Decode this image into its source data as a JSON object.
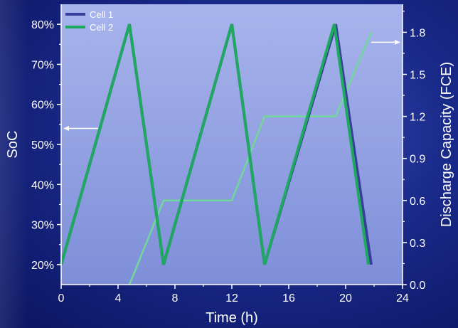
{
  "chart_data": {
    "type": "line",
    "xlabel": "Time (h)",
    "ylabel": "SoC",
    "ylabel_right": "Discharge Capacity (FCE)",
    "xlim": [
      0,
      24
    ],
    "ylim": [
      15,
      85
    ],
    "ylim_right": [
      0,
      2.0
    ],
    "x_ticks": [
      "0",
      "4",
      "8",
      "12",
      "16",
      "20",
      "24"
    ],
    "y_ticks": [
      "20%",
      "30%",
      "40%",
      "50%",
      "60%",
      "70%",
      "80%"
    ],
    "y_right_ticks": [
      "0.0",
      "0.3",
      "0.6",
      "0.9",
      "1.2",
      "1.5",
      "1.8"
    ],
    "legend_position": "top-left",
    "grid": false,
    "series": [
      {
        "name": "Cell 1",
        "axis": "left",
        "color": "#3a3f9a",
        "x": [
          0,
          4.8,
          7.2,
          12.0,
          14.3,
          19.3,
          21.8
        ],
        "y": [
          20,
          80,
          20,
          80,
          20,
          80,
          20
        ]
      },
      {
        "name": "Cell 2",
        "axis": "left",
        "color": "#1fa860",
        "x": [
          0,
          4.8,
          7.2,
          12.0,
          14.3,
          19.2,
          21.6
        ],
        "y": [
          20,
          80,
          20,
          80,
          20,
          80,
          20
        ]
      },
      {
        "name": "",
        "axis": "right",
        "color": "#6fd89a",
        "x": [
          4.8,
          7.2,
          12.0,
          14.3,
          19.3,
          21.8
        ],
        "y": [
          0.0,
          0.6,
          0.6,
          1.2,
          1.2,
          1.8
        ]
      }
    ],
    "annotations": [
      {
        "type": "arrow",
        "points_to": "left-axis",
        "x": 2.6,
        "y": 54
      },
      {
        "type": "arrow",
        "points_to": "right-axis",
        "x": 21.8,
        "y": 1.8
      }
    ]
  },
  "colors": {
    "plot_bg_top": "#a8b4ec",
    "plot_bg_bottom": "#7e8fd8",
    "axis": "#ffffff",
    "text": "#ffffff"
  }
}
